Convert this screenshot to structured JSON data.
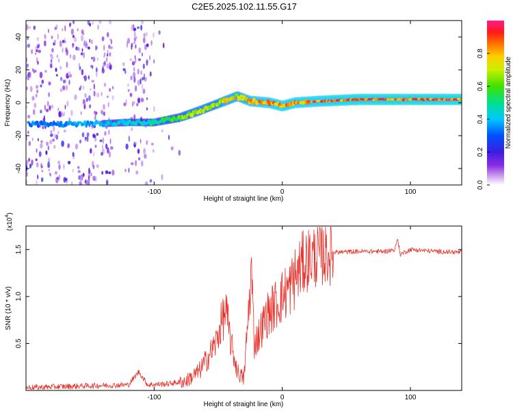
{
  "chart_data": [
    {
      "type": "heatmap",
      "title": "C2E5.2025.102.11.55.G17",
      "xlabel": "Height of straight line (km)",
      "ylabel": "Frequency (Hz)",
      "xlim": [
        -200,
        140
      ],
      "ylim": [
        -50,
        50
      ],
      "xticks": [
        -100,
        0,
        100
      ],
      "xtick_labels": [
        "-100",
        "0",
        "100"
      ],
      "yticks": [
        -40,
        -20,
        0,
        20,
        40
      ],
      "ytick_labels": [
        "-40",
        "-20",
        "0",
        "20",
        "40"
      ],
      "colorbar": {
        "label": "Normalized spectral amplitude",
        "range": [
          0,
          1
        ],
        "ticks": [
          0.0,
          0.2,
          0.4,
          0.6,
          0.8
        ],
        "tick_labels": [
          "0.0",
          "0.2",
          "0.4",
          "0.6",
          "0.8"
        ],
        "colormap": "rainbow (violet to red)"
      },
      "ridge": {
        "x": [
          -200,
          -150,
          -120,
          -100,
          -80,
          -65,
          -55,
          -45,
          -35,
          -25,
          -10,
          0,
          10,
          30,
          60,
          100,
          140
        ],
        "y": [
          -13,
          -13,
          -12,
          -12,
          -9,
          -5,
          -2,
          1,
          4,
          1,
          0,
          -2,
          0,
          1,
          2,
          2,
          2
        ],
        "amplitude": [
          0.35,
          0.4,
          0.45,
          0.5,
          0.65,
          0.75,
          0.7,
          0.8,
          0.8,
          0.85,
          0.9,
          0.9,
          0.9,
          0.9,
          0.95,
          0.95,
          0.95
        ]
      }
    },
    {
      "type": "line",
      "xlabel": "Height of straight line (km)",
      "ylabel": "SNR (10 * v/v)",
      "y_scale_label": "(x10",
      "y_scale_exponent": "4",
      "y_scale_suffix": ")",
      "xlim": [
        -200,
        140
      ],
      "ylim": [
        0,
        1.75
      ],
      "xticks": [
        -100,
        0,
        100
      ],
      "xtick_labels": [
        "-100",
        "0",
        "100"
      ],
      "yticks": [
        0.5,
        1.0,
        1.5
      ],
      "ytick_labels": [
        "0.5",
        "1.0",
        "1.5"
      ],
      "series": [
        {
          "name": "SNR",
          "color": "#e8302a",
          "x": [
            -200,
            -150,
            -120,
            -112,
            -105,
            -90,
            -75,
            -65,
            -58,
            -52,
            -48,
            -44,
            -40,
            -35,
            -30,
            -26,
            -24,
            -22,
            -18,
            -12,
            -6,
            0,
            6,
            12,
            16,
            22,
            30,
            40,
            60,
            80,
            88,
            90,
            92,
            100,
            120,
            140
          ],
          "y": [
            0.03,
            0.05,
            0.06,
            0.2,
            0.06,
            0.07,
            0.1,
            0.2,
            0.35,
            0.5,
            0.7,
            0.85,
            0.5,
            0.2,
            0.12,
            0.9,
            1.3,
            0.5,
            0.6,
            0.8,
            0.9,
            1.0,
            1.1,
            1.25,
            1.35,
            1.42,
            1.45,
            1.47,
            1.48,
            1.48,
            1.5,
            1.62,
            1.45,
            1.5,
            1.48,
            1.47
          ]
        }
      ]
    }
  ]
}
